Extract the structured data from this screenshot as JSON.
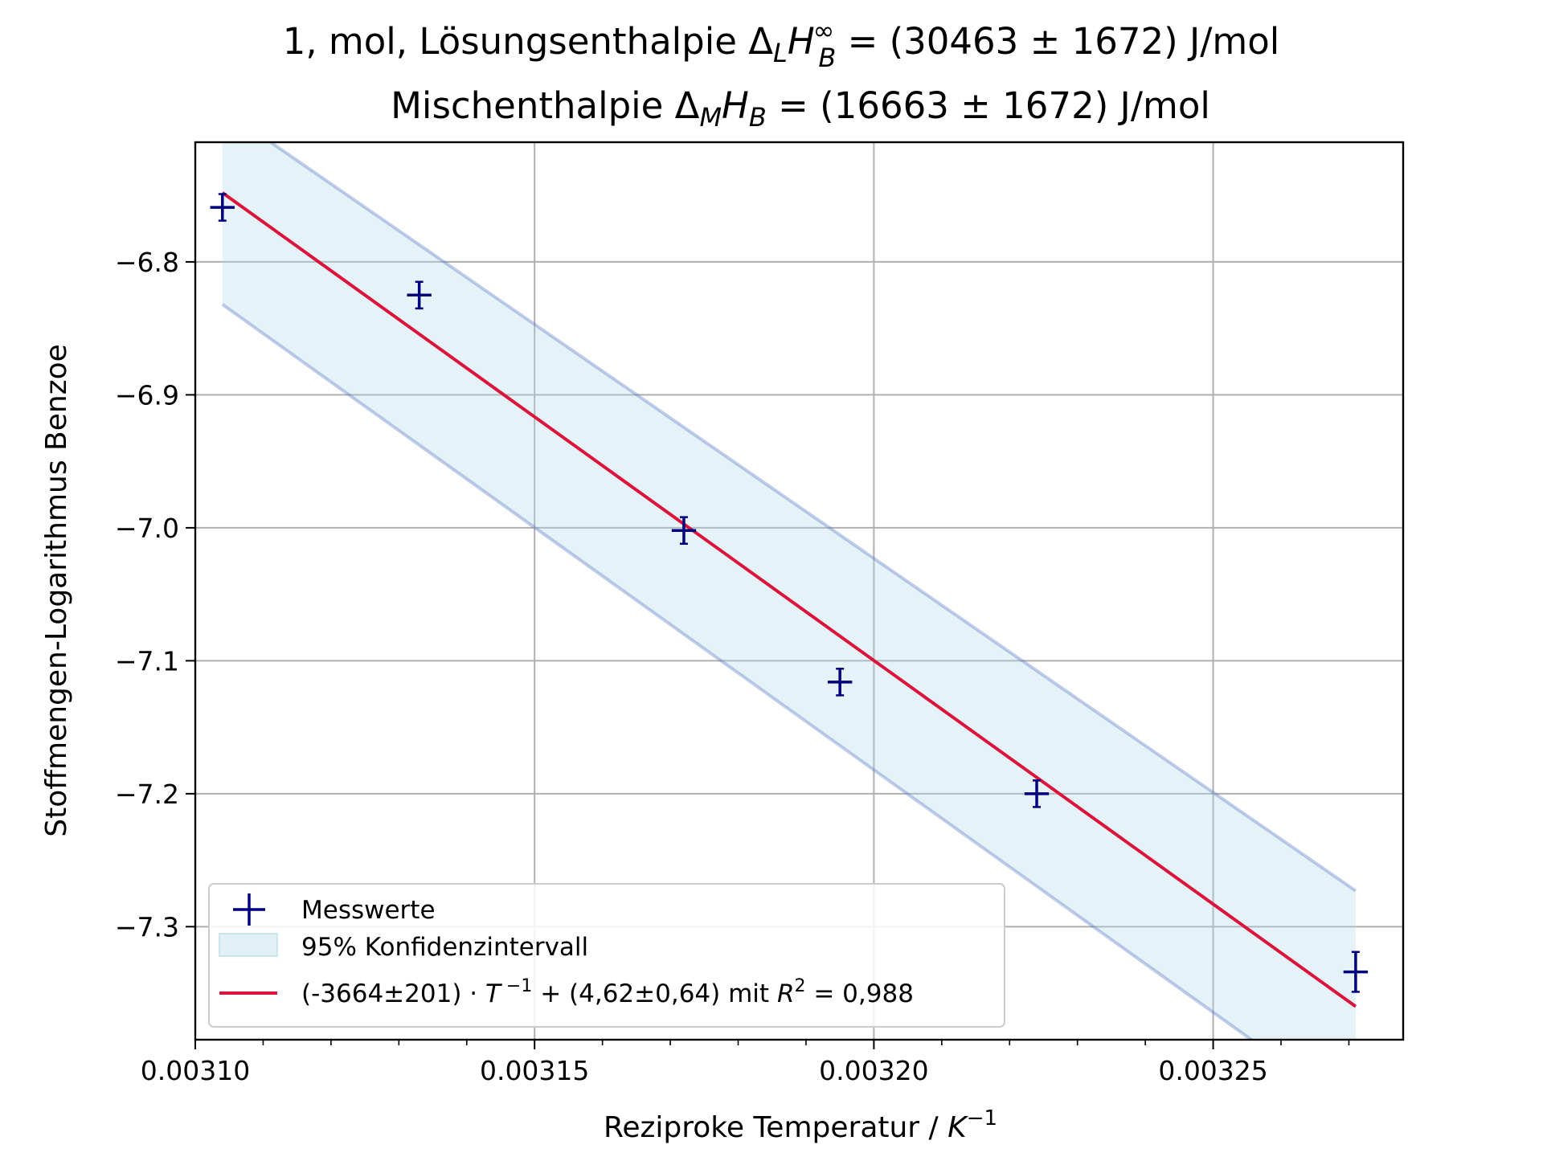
{
  "chart_data": {
    "type": "scatter",
    "title_lines": [
      "1, mol, Lösungsenthalpie Δ_L H_B^∞ = (30463 ± 1672) J/mol",
      "Mischenthalpie Δ_M H_B = (16663 ± 1672) J/mol"
    ],
    "xlabel": "Reziproke Temperatur / K^−1",
    "ylabel": "Stoffmengen-Logarithmus Benzoe",
    "xlim": [
      0.0031,
      0.003278
    ],
    "ylim": [
      -7.385,
      -6.71
    ],
    "grid": true,
    "legend_position": "lower-left",
    "x_ticks": [
      0.0031,
      0.00315,
      0.0032,
      0.00325
    ],
    "x_tick_labels": [
      "0.00310",
      "0.00315",
      "0.00320",
      "0.00325"
    ],
    "y_ticks": [
      -6.8,
      -6.9,
      -7.0,
      -7.1,
      -7.2,
      -7.3
    ],
    "y_tick_labels": [
      "−6.8",
      "−6.9",
      "−7.0",
      "−7.1",
      "−7.2",
      "−7.3"
    ],
    "series": [
      {
        "name": "Messwerte",
        "kind": "errorbar",
        "color": "#00007f",
        "x": [
          0.003104,
          0.003133,
          0.003172,
          0.003195,
          0.003224,
          0.003271
        ],
        "y": [
          -6.759,
          -6.825,
          -7.002,
          -7.116,
          -7.2,
          -7.334
        ],
        "xerr": [
          1.8e-06,
          1.8e-06,
          1.8e-06,
          1.8e-06,
          1.8e-06,
          1.8e-06
        ],
        "yerr": [
          0.01,
          0.01,
          0.01,
          0.01,
          0.01,
          0.015
        ]
      },
      {
        "name": "95% Konfidenzintervall",
        "kind": "band",
        "color": "#add8e6",
        "edge_color": "#4a6cc0",
        "x": [
          0.003104,
          0.003271
        ],
        "lower": [
          -6.832,
          -7.441
        ],
        "upper": [
          -6.685,
          -7.273
        ]
      },
      {
        "name": "(-3664±201)·T⁻¹ + (4,62±0,64) mit R² = 0,988",
        "kind": "line",
        "color": "#dc143c",
        "x": [
          0.003104,
          0.003271
        ],
        "y": [
          -6.748,
          -7.36
        ]
      }
    ]
  }
}
